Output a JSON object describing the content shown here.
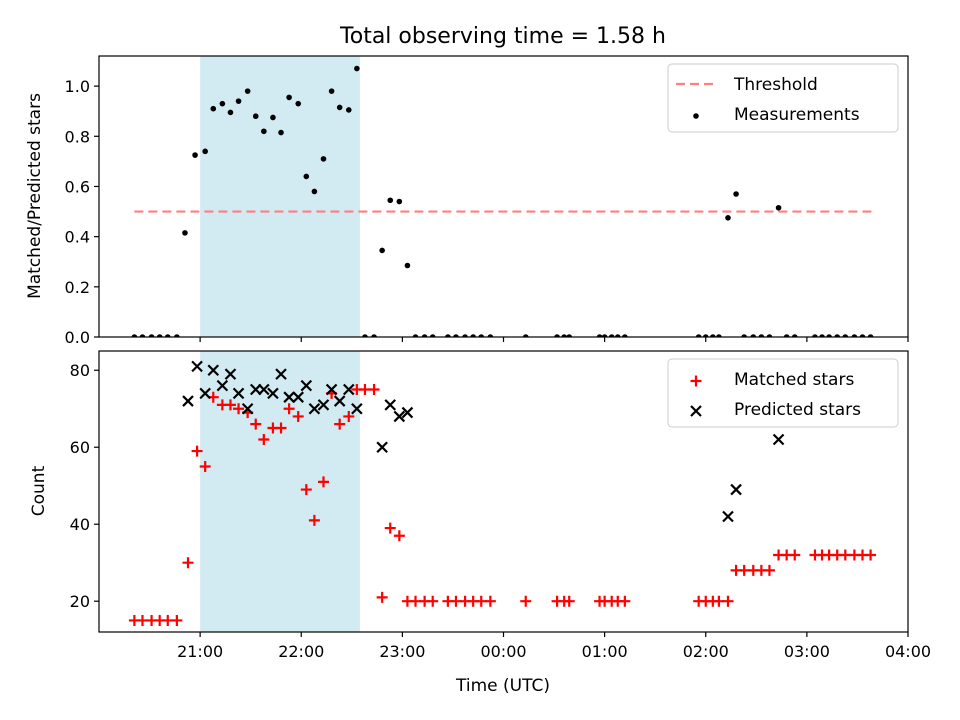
{
  "figure": {
    "title": "Total observing time = 1.58 h"
  },
  "chart_data": [
    {
      "type": "scatter",
      "title": "Total observing time = 1.58 h",
      "xlabel": "",
      "ylabel": "Matched/Predicted stars",
      "x_unit": "hours after 00:00 UTC on the first night (x = 21 means 21:00, x = 24 means 00:00 the next day)",
      "xlim": [
        20.0,
        28.0
      ],
      "ylim": [
        0,
        1.12
      ],
      "yticks": [
        0.0,
        0.2,
        0.4,
        0.6,
        0.8,
        1.0
      ],
      "ytick_labels": [
        "0.0",
        "0.2",
        "0.4",
        "0.6",
        "0.8",
        "1.0"
      ],
      "highlight_span": {
        "start": 21.0,
        "end": 22.58,
        "color": "#add8e6"
      },
      "legend": {
        "placement": "upper right",
        "entries": [
          "Threshold",
          "Measurements"
        ]
      },
      "threshold": {
        "name": "Threshold",
        "y": 0.5,
        "x_start": 20.35,
        "x_end": 27.65,
        "color": "#ff7f7f",
        "style": "dashed"
      },
      "series": [
        {
          "name": "Measurements",
          "color": "#000000",
          "marker": "dot",
          "points": [
            [
              20.35,
              0
            ],
            [
              20.43,
              0
            ],
            [
              20.52,
              0
            ],
            [
              20.6,
              0
            ],
            [
              20.68,
              0
            ],
            [
              20.77,
              0
            ],
            [
              20.85,
              0.415
            ],
            [
              20.95,
              0.725
            ],
            [
              21.05,
              0.74
            ],
            [
              21.13,
              0.91
            ],
            [
              21.22,
              0.93
            ],
            [
              21.3,
              0.895
            ],
            [
              21.38,
              0.94
            ],
            [
              21.47,
              0.98
            ],
            [
              21.55,
              0.88
            ],
            [
              21.63,
              0.82
            ],
            [
              21.72,
              0.875
            ],
            [
              21.8,
              0.815
            ],
            [
              21.88,
              0.955
            ],
            [
              21.97,
              0.93
            ],
            [
              22.05,
              0.64
            ],
            [
              22.13,
              0.58
            ],
            [
              22.22,
              0.71
            ],
            [
              22.3,
              0.98
            ],
            [
              22.38,
              0.915
            ],
            [
              22.47,
              0.905
            ],
            [
              22.55,
              1.07
            ],
            [
              22.63,
              0
            ],
            [
              22.72,
              0
            ],
            [
              22.8,
              0.345
            ],
            [
              22.88,
              0.545
            ],
            [
              22.97,
              0.54
            ],
            [
              23.05,
              0.285
            ],
            [
              23.13,
              0
            ],
            [
              23.22,
              0
            ],
            [
              23.3,
              0
            ],
            [
              23.45,
              0
            ],
            [
              23.53,
              0
            ],
            [
              23.62,
              0
            ],
            [
              23.7,
              0
            ],
            [
              23.78,
              0
            ],
            [
              23.87,
              0
            ],
            [
              24.22,
              0
            ],
            [
              24.53,
              0
            ],
            [
              24.6,
              0
            ],
            [
              24.65,
              0
            ],
            [
              24.95,
              0
            ],
            [
              25.0,
              0
            ],
            [
              25.07,
              0
            ],
            [
              25.13,
              0
            ],
            [
              25.2,
              0
            ],
            [
              25.93,
              0
            ],
            [
              26.0,
              0
            ],
            [
              26.07,
              0
            ],
            [
              26.13,
              0
            ],
            [
              26.22,
              0.475
            ],
            [
              26.3,
              0.57
            ],
            [
              26.38,
              0
            ],
            [
              26.47,
              0
            ],
            [
              26.55,
              0
            ],
            [
              26.63,
              0
            ],
            [
              26.72,
              0.515
            ],
            [
              26.8,
              0
            ],
            [
              26.88,
              0
            ],
            [
              27.08,
              0
            ],
            [
              27.15,
              0
            ],
            [
              27.22,
              0
            ],
            [
              27.3,
              0
            ],
            [
              27.38,
              0
            ],
            [
              27.47,
              0
            ],
            [
              27.55,
              0
            ],
            [
              27.63,
              0
            ]
          ]
        }
      ]
    },
    {
      "type": "scatter",
      "title": "",
      "xlabel": "Time (UTC)",
      "ylabel": "Count",
      "x_unit": "hours after 00:00 UTC on the first night (x = 21 means 21:00, x = 24 means 00:00 the next day)",
      "xlim": [
        20.0,
        28.0
      ],
      "ylim": [
        12,
        85
      ],
      "yticks": [
        20,
        40,
        60,
        80
      ],
      "ytick_labels": [
        "20",
        "40",
        "60",
        "80"
      ],
      "xticks": [
        21,
        22,
        23,
        24,
        25,
        26,
        27,
        28
      ],
      "xtick_labels": [
        "21:00",
        "22:00",
        "23:00",
        "00:00",
        "01:00",
        "02:00",
        "03:00",
        "04:00"
      ],
      "highlight_span": {
        "start": 21.0,
        "end": 22.58,
        "color": "#add8e6"
      },
      "legend": {
        "placement": "upper right",
        "entries": [
          "Matched stars",
          "Predicted stars"
        ]
      },
      "series": [
        {
          "name": "Matched stars",
          "color": "#ff0000",
          "marker": "plus",
          "points": [
            [
              20.35,
              15
            ],
            [
              20.43,
              15
            ],
            [
              20.52,
              15
            ],
            [
              20.6,
              15
            ],
            [
              20.68,
              15
            ],
            [
              20.77,
              15
            ],
            [
              20.88,
              30
            ],
            [
              20.97,
              59
            ],
            [
              21.05,
              55
            ],
            [
              21.13,
              73
            ],
            [
              21.22,
              71
            ],
            [
              21.3,
              71
            ],
            [
              21.38,
              70
            ],
            [
              21.47,
              69
            ],
            [
              21.55,
              66
            ],
            [
              21.63,
              62
            ],
            [
              21.72,
              65
            ],
            [
              21.8,
              65
            ],
            [
              21.88,
              70
            ],
            [
              21.97,
              68
            ],
            [
              22.05,
              49
            ],
            [
              22.13,
              41
            ],
            [
              22.22,
              51
            ],
            [
              22.3,
              74
            ],
            [
              22.38,
              66
            ],
            [
              22.47,
              68
            ],
            [
              22.55,
              75
            ],
            [
              22.63,
              75
            ],
            [
              22.72,
              75
            ],
            [
              22.8,
              21
            ],
            [
              22.88,
              39
            ],
            [
              22.97,
              37
            ],
            [
              23.05,
              20
            ],
            [
              23.13,
              20
            ],
            [
              23.22,
              20
            ],
            [
              23.3,
              20
            ],
            [
              23.45,
              20
            ],
            [
              23.53,
              20
            ],
            [
              23.62,
              20
            ],
            [
              23.7,
              20
            ],
            [
              23.78,
              20
            ],
            [
              23.87,
              20
            ],
            [
              24.22,
              20
            ],
            [
              24.53,
              20
            ],
            [
              24.6,
              20
            ],
            [
              24.65,
              20
            ],
            [
              24.95,
              20
            ],
            [
              25.0,
              20
            ],
            [
              25.07,
              20
            ],
            [
              25.13,
              20
            ],
            [
              25.2,
              20
            ],
            [
              25.93,
              20
            ],
            [
              26.0,
              20
            ],
            [
              26.07,
              20
            ],
            [
              26.13,
              20
            ],
            [
              26.22,
              20
            ],
            [
              26.3,
              28
            ],
            [
              26.38,
              28
            ],
            [
              26.47,
              28
            ],
            [
              26.55,
              28
            ],
            [
              26.63,
              28
            ],
            [
              26.72,
              32
            ],
            [
              26.8,
              32
            ],
            [
              26.88,
              32
            ],
            [
              27.08,
              32
            ],
            [
              27.15,
              32
            ],
            [
              27.22,
              32
            ],
            [
              27.3,
              32
            ],
            [
              27.38,
              32
            ],
            [
              27.47,
              32
            ],
            [
              27.55,
              32
            ],
            [
              27.63,
              32
            ]
          ]
        },
        {
          "name": "Predicted stars",
          "color": "#000000",
          "marker": "x",
          "points": [
            [
              20.88,
              72
            ],
            [
              20.97,
              81
            ],
            [
              21.05,
              74
            ],
            [
              21.13,
              80
            ],
            [
              21.22,
              76
            ],
            [
              21.3,
              79
            ],
            [
              21.38,
              74
            ],
            [
              21.47,
              70
            ],
            [
              21.55,
              75
            ],
            [
              21.63,
              75
            ],
            [
              21.72,
              74
            ],
            [
              21.8,
              79
            ],
            [
              21.88,
              73
            ],
            [
              21.97,
              73
            ],
            [
              22.05,
              76
            ],
            [
              22.13,
              70
            ],
            [
              22.22,
              71
            ],
            [
              22.3,
              75
            ],
            [
              22.38,
              72
            ],
            [
              22.47,
              75
            ],
            [
              22.55,
              70
            ],
            [
              22.8,
              60
            ],
            [
              22.88,
              71
            ],
            [
              22.97,
              68
            ],
            [
              23.05,
              69
            ],
            [
              26.22,
              42
            ],
            [
              26.3,
              49
            ],
            [
              26.72,
              62
            ]
          ]
        }
      ]
    }
  ]
}
